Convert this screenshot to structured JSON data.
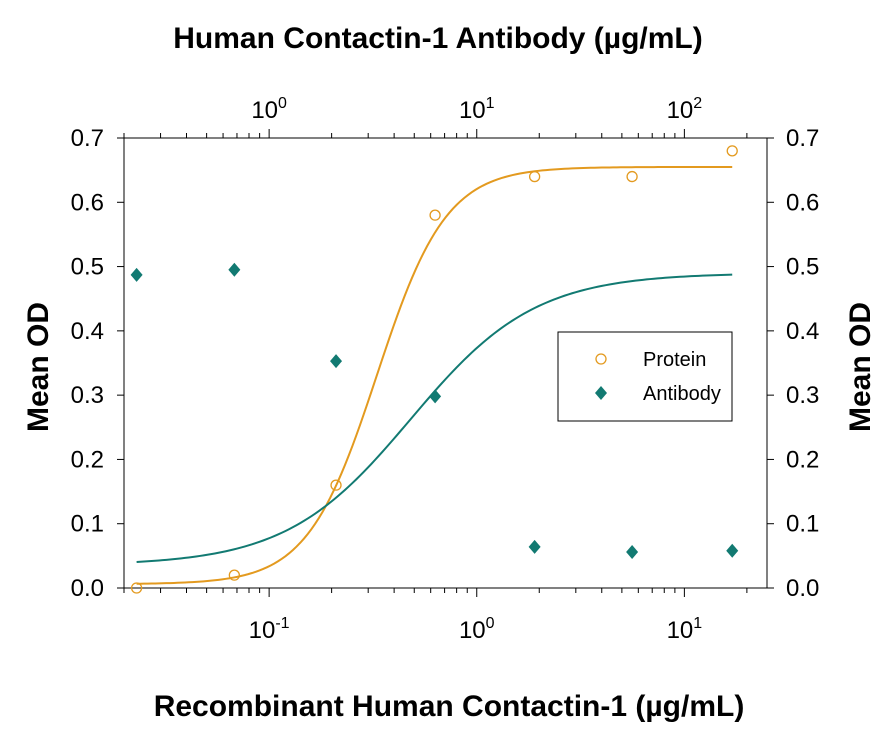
{
  "chart_data": {
    "type": "scatter",
    "title_top": "Human Contactin-1 Antibody (µg/mL)",
    "xlabel": "Recombinant Human Contactin-1 (µg/mL)",
    "ylabel_left": "Mean OD",
    "ylabel_right": "Mean OD",
    "x_scale": "log",
    "x_bottom_lim": [
      0.02,
      25
    ],
    "x_top_lim": [
      0.2,
      250
    ],
    "ylim": [
      0,
      0.7
    ],
    "y_ticks": [
      "0.0",
      "0.1",
      "0.2",
      "0.3",
      "0.4",
      "0.5",
      "0.6",
      "0.7"
    ],
    "x_bottom_ticks": [
      {
        "base": "10",
        "exp": "-1",
        "value": 0.1
      },
      {
        "base": "10",
        "exp": "0",
        "value": 1
      },
      {
        "base": "10",
        "exp": "1",
        "value": 10
      }
    ],
    "x_top_ticks": [
      {
        "base": "10",
        "exp": "0",
        "value": 1
      },
      {
        "base": "10",
        "exp": "1",
        "value": 10
      },
      {
        "base": "10",
        "exp": "2",
        "value": 100
      }
    ],
    "grid": false,
    "legend_position": "center-right",
    "series": [
      {
        "name": "Protein",
        "axis": "bottom",
        "marker": "circle-open",
        "color": "#E39A1F",
        "x": [
          0.023,
          0.068,
          0.21,
          0.63,
          1.9,
          5.6,
          17
        ],
        "y": [
          0.0,
          0.02,
          0.16,
          0.58,
          0.64,
          0.64,
          0.68
        ],
        "fit": {
          "bottom": 0.006,
          "top": 0.655,
          "ec50": 0.33,
          "hill": 2.6
        }
      },
      {
        "name": "Antibody",
        "axis": "top",
        "marker": "diamond-filled",
        "color": "#127A72",
        "x": [
          0.23,
          0.68,
          2.1,
          6.3,
          19,
          56,
          170
        ],
        "y": [
          0.487,
          0.495,
          0.353,
          0.298,
          0.064,
          0.056,
          0.058
        ],
        "fit": {
          "bottom": 0.035,
          "top": 0.49,
          "ec50": 4.8,
          "hill": 1.45
        }
      }
    ]
  }
}
